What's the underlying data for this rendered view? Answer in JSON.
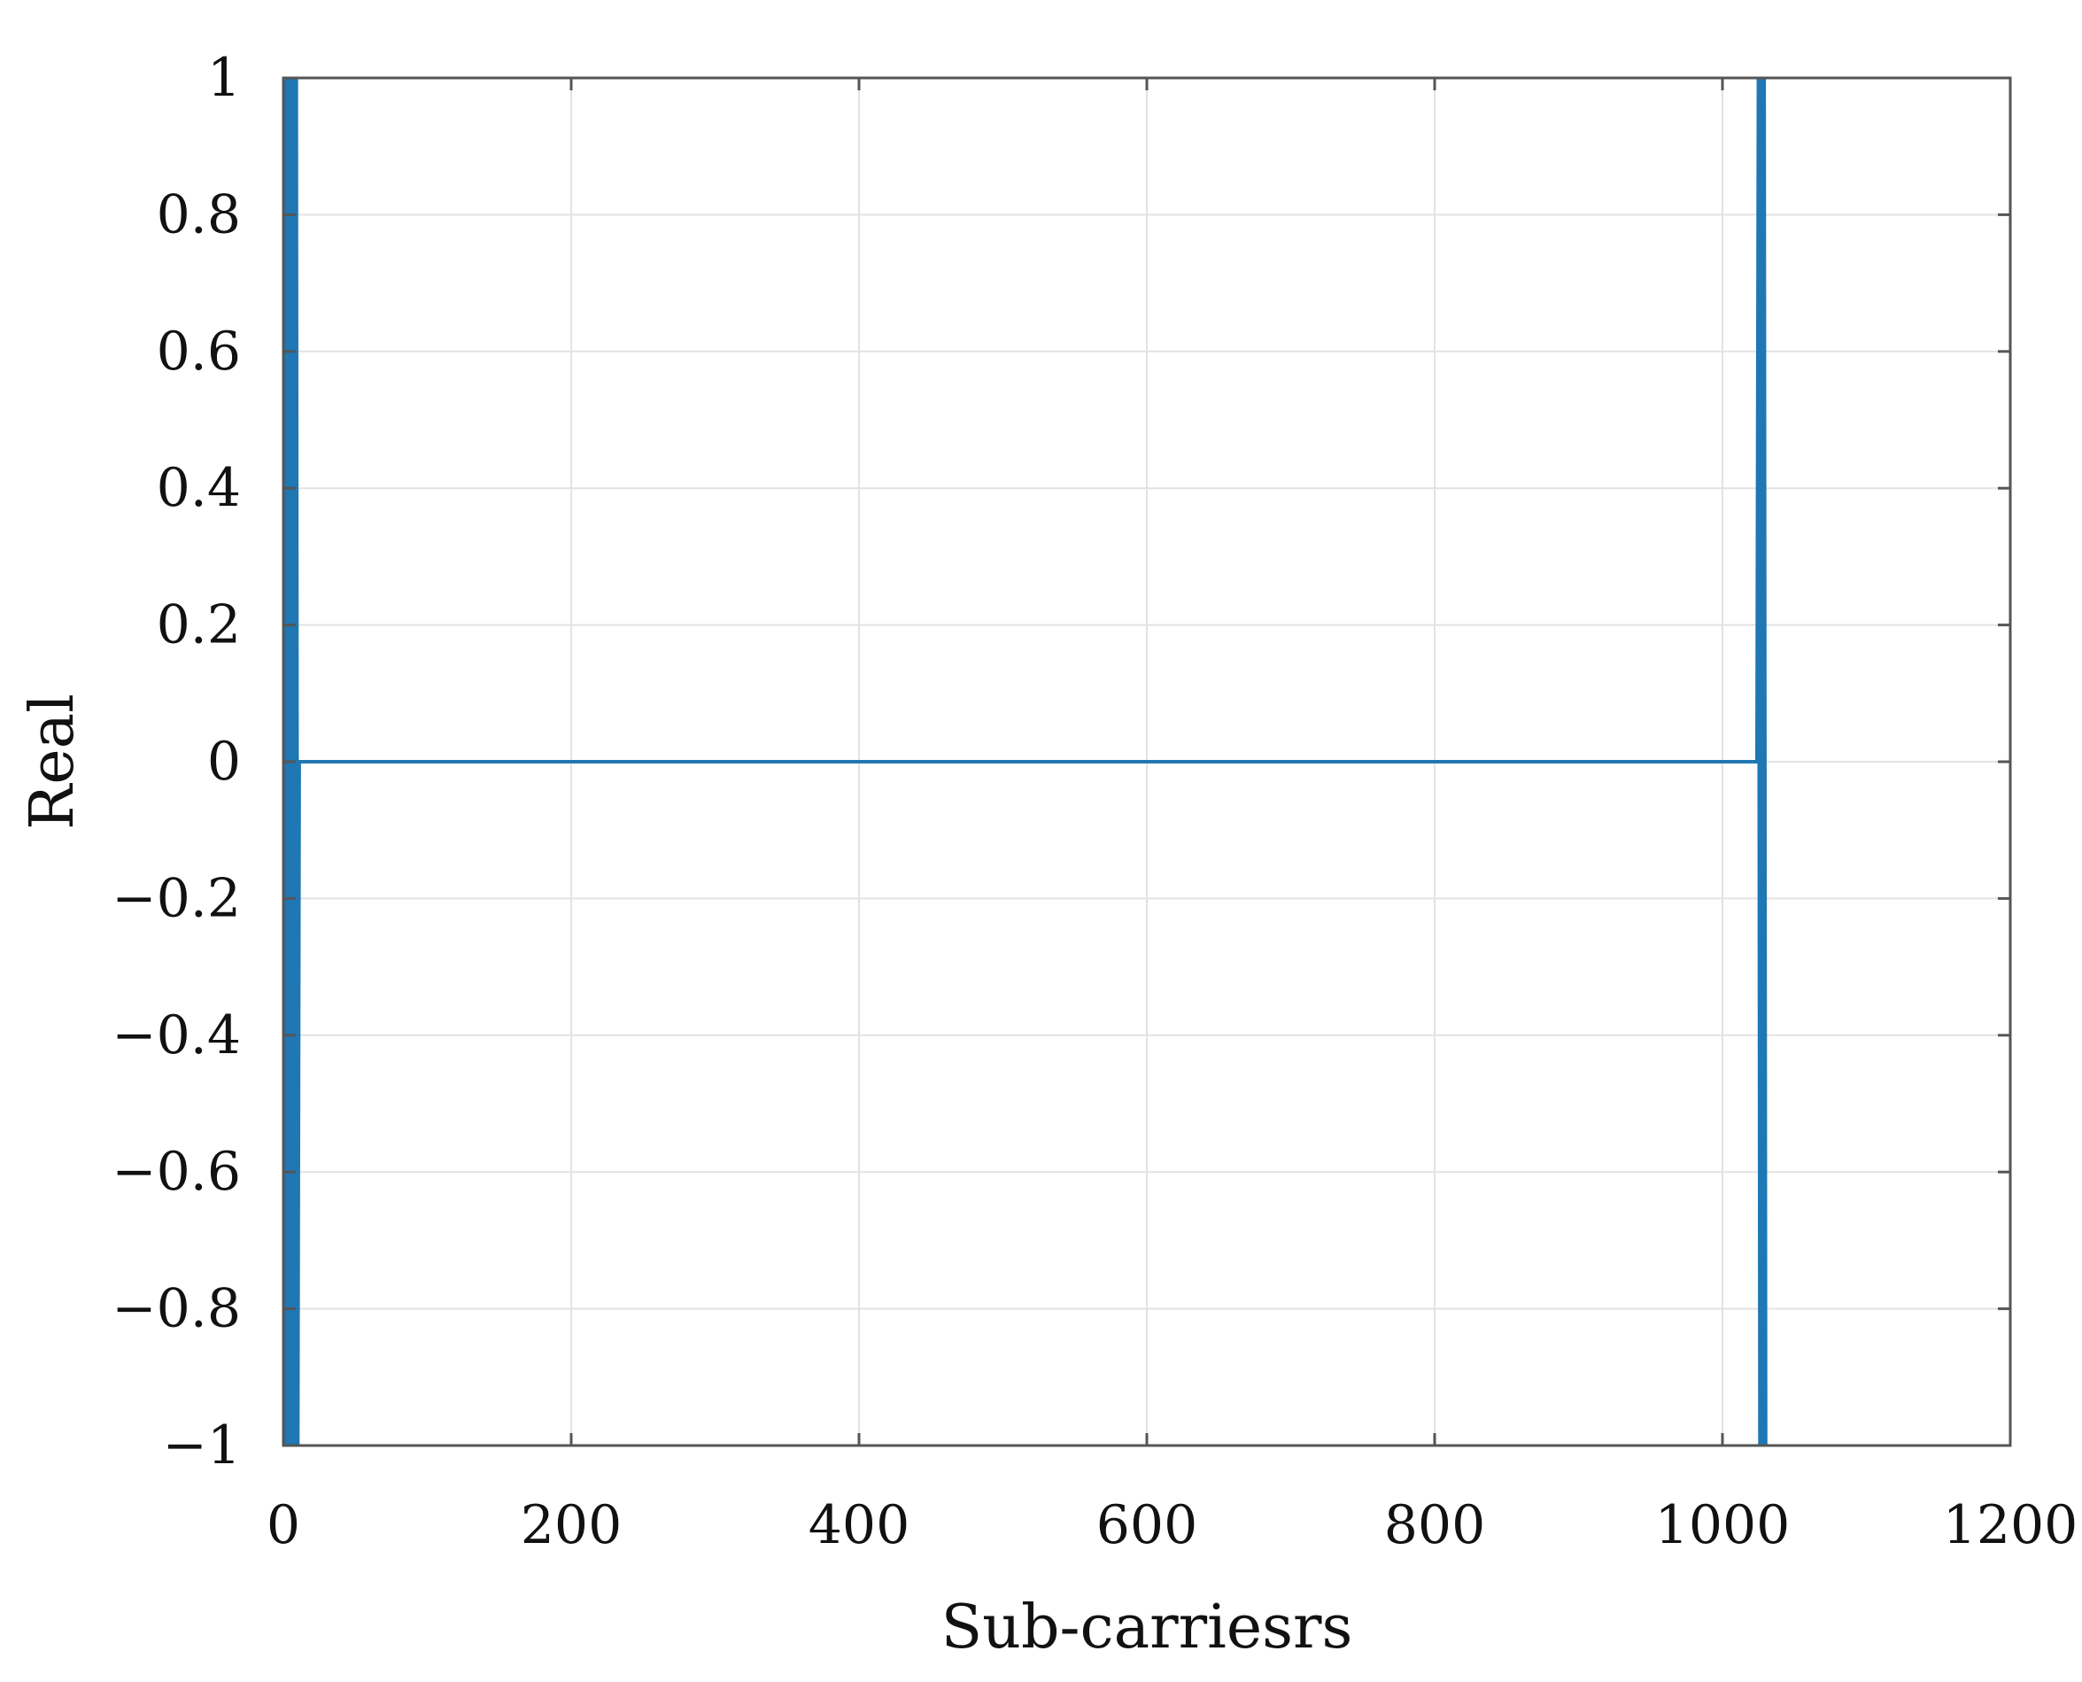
{
  "chart_data": {
    "type": "line",
    "title": "",
    "xlabel": "Sub-carriesrs",
    "ylabel": "Real",
    "xlim": [
      0,
      1200
    ],
    "ylim": [
      -1,
      1
    ],
    "x_ticks": [
      0,
      200,
      400,
      600,
      800,
      1000,
      1200
    ],
    "y_ticks": [
      -1,
      -0.8,
      -0.6,
      -0.4,
      -0.2,
      0,
      0.2,
      0.4,
      0.6,
      0.8,
      1
    ],
    "x_tick_labels": [
      "0",
      "200",
      "400",
      "600",
      "800",
      "1000",
      "1200"
    ],
    "y_tick_labels": [
      "−1",
      "−0.8",
      "−0.6",
      "−0.4",
      "−0.2",
      "0",
      "0.2",
      "0.4",
      "0.6",
      "0.8",
      "1"
    ],
    "grid": true,
    "series": [
      {
        "color": "#1f77b4",
        "x": [
          1,
          2,
          3,
          4,
          5,
          6,
          7,
          8,
          9,
          10,
          11,
          1024,
          1025,
          1026,
          1027,
          1028,
          1029,
          1030
        ],
        "y": [
          1,
          -1,
          1,
          -1,
          1,
          -1,
          1,
          -1,
          1,
          -1,
          0,
          0,
          1,
          -1,
          1,
          -1,
          1,
          -1
        ]
      }
    ],
    "colors": {
      "line": "#1f77b4",
      "grid": "#e3e3e3",
      "axes": "#555555"
    }
  }
}
